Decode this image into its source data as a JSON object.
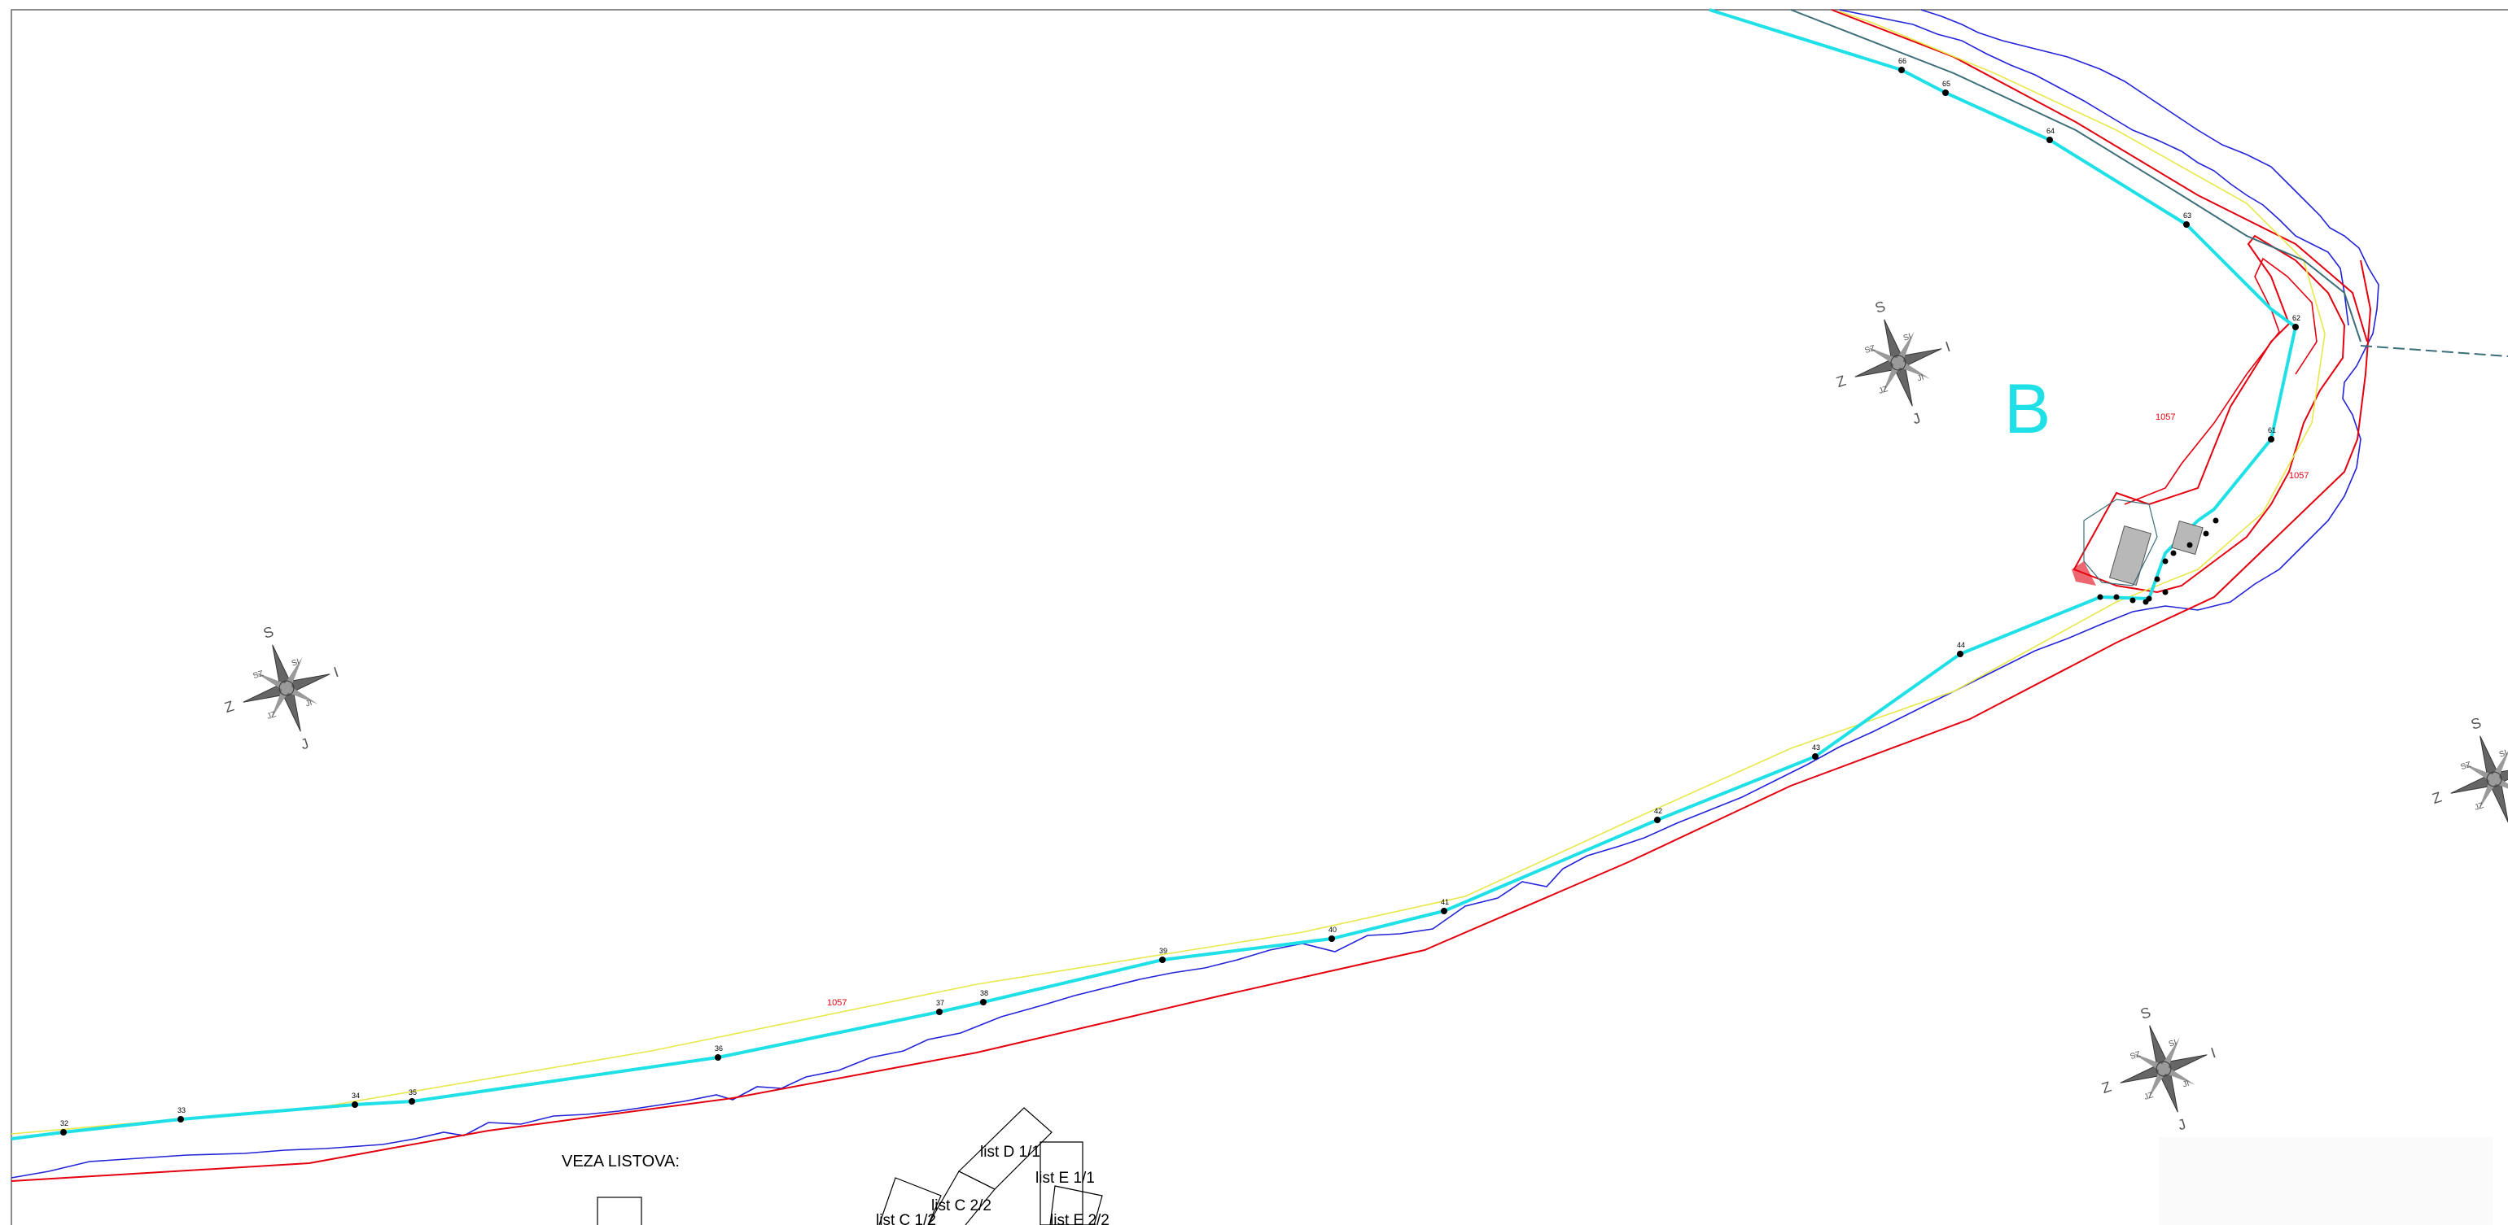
{
  "map": {
    "zone_letter": "B",
    "parcel_labels": [
      "1057",
      "1057",
      "1057"
    ],
    "point_labels": [
      "32",
      "33",
      "34",
      "35",
      "36",
      "37",
      "38",
      "39",
      "40",
      "41",
      "42",
      "43",
      "44",
      "61",
      "62",
      "63",
      "64",
      "65",
      "66"
    ],
    "compass_labels": {
      "north": "S",
      "south": "J",
      "west": "Z",
      "east": "I",
      "nw": "SZ",
      "ne": "SI",
      "sw": "JZ",
      "se": "JI"
    },
    "sheet_index": {
      "title": "VEZA LISTOVA:",
      "sheets": [
        "list C 1/2",
        "list C 2/2",
        "list D 1/1",
        "list E 1/1",
        "list E 2/2"
      ]
    },
    "colors": {
      "shoreline": "#2323d8",
      "boundary": "#e3000f",
      "centerline": "#1fe0e6",
      "offset_line": "#e8e84a",
      "road_edge": "#3c6e7a",
      "building": "#b8b8b8",
      "compass": "#666666"
    }
  }
}
